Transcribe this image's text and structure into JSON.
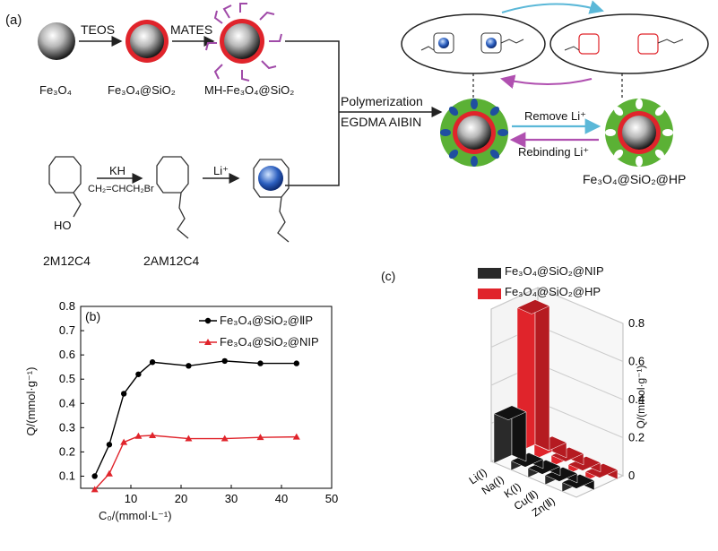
{
  "panel_a": {
    "label": "(a)",
    "step_labels": {
      "teos": "TEOS",
      "mates": "MATES",
      "kh": "KH",
      "li": "Li⁺",
      "allyl_bromide": "CH₂=CHCH₂Br"
    },
    "particles": {
      "fe3o4": "Fe₃O₄",
      "fe3o4_sio2": "Fe₃O₄@SiO₂",
      "mh": "MH-Fe₃O₄@SiO₂"
    },
    "molecules": {
      "m1": "2M12C4",
      "m2": "2AM12C4",
      "ho": "HO"
    },
    "polymerization": {
      "line1": "Polymerization",
      "line2": "EGDMA AIBIN"
    },
    "remove": "Remove Li⁺",
    "rebinding": "Rebinding Li⁺",
    "product": "Fe₃O₄@SiO₂@HP",
    "colors": {
      "shell": "#e0242b",
      "matrix": "#5bb135",
      "site": "#1f4fa0",
      "remove_arrow": "#5bb8d8",
      "rebind_arrow": "#b050b0",
      "bond": "#333333"
    }
  },
  "panel_b": {
    "label": "(b)",
    "xlabel": "C₀/(mmol·L⁻¹)",
    "ylabel": "Q/(mmol·g⁻¹)",
    "legend": [
      "Fe₃O₄@SiO₂@ⅡP",
      "Fe₃O₄@SiO₂@NIP"
    ],
    "x_ticks": [
      "10",
      "20",
      "30",
      "40",
      "50"
    ],
    "y_ticks": [
      "0.1",
      "0.2",
      "0.3",
      "0.4",
      "0.5",
      "0.6",
      "0.7",
      "0.8"
    ]
  },
  "panel_c": {
    "label": "(c)",
    "legend": [
      "Fe₃O₄@SiO₂@NIP",
      "Fe₃O₄@SiO₂@HP"
    ],
    "ylabel": "Q/(mmol·g⁻¹)",
    "z_ticks": [
      "0",
      "0.2",
      "0.4",
      "0.6",
      "0.8"
    ],
    "ions": [
      "Li(Ⅰ)",
      "Na(Ⅰ)",
      "K(Ⅰ)",
      "Cu(Ⅱ)",
      "Zn(Ⅱ)"
    ]
  },
  "chart_data": [
    {
      "type": "line",
      "title": "",
      "xlabel": "C₀/(mmol·L⁻¹)",
      "ylabel": "Q/(mmol·g⁻¹)",
      "xlim": [
        0,
        50
      ],
      "ylim": [
        0.05,
        0.8
      ],
      "grid": false,
      "legend_position": "top-right",
      "series": [
        {
          "name": "Fe₃O₄@SiO₂@ⅡP",
          "color": "#000000",
          "marker": "circle",
          "x": [
            2.8,
            5.7,
            8.6,
            11.5,
            14.3,
            21.5,
            28.7,
            35.8,
            43.0
          ],
          "y": [
            0.1,
            0.23,
            0.44,
            0.52,
            0.57,
            0.555,
            0.575,
            0.565,
            0.565
          ]
        },
        {
          "name": "Fe₃O₄@SiO₂@NIP",
          "color": "#e0242b",
          "marker": "triangle",
          "x": [
            2.8,
            5.7,
            8.6,
            11.5,
            14.3,
            21.5,
            28.7,
            35.8,
            43.0
          ],
          "y": [
            0.045,
            0.11,
            0.24,
            0.265,
            0.268,
            0.255,
            0.255,
            0.26,
            0.262
          ]
        }
      ]
    },
    {
      "type": "bar",
      "subtype": "3d-bar",
      "title": "",
      "categories": [
        "Li(Ⅰ)",
        "Na(Ⅰ)",
        "K(Ⅰ)",
        "Cu(Ⅱ)",
        "Zn(Ⅱ)"
      ],
      "zlabel": "Q/(mmol·g⁻¹)",
      "zlim": [
        0,
        0.8
      ],
      "series": [
        {
          "name": "Fe₃O₄@SiO₂@NIP",
          "color": "#2a2a2a",
          "values": [
            0.26,
            0.05,
            0.05,
            0.05,
            0.05
          ]
        },
        {
          "name": "Fe₃O₄@SiO₂@HP",
          "color": "#e0242b",
          "values": [
            0.76,
            0.08,
            0.06,
            0.05,
            0.05
          ]
        }
      ],
      "legend_position": "top-left"
    }
  ]
}
